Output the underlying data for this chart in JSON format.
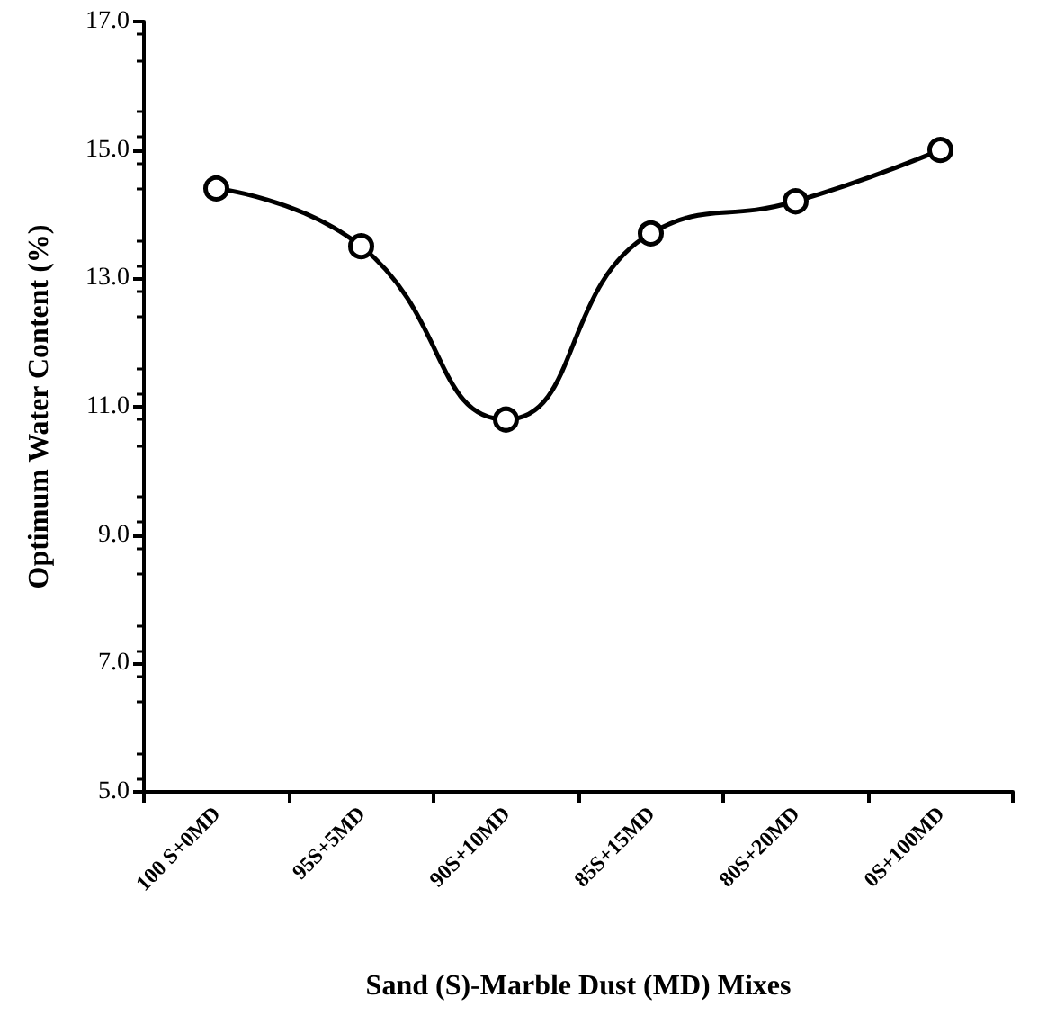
{
  "chart_data": {
    "type": "line",
    "xlabel": "Sand (S)-Marble Dust (MD) Mixes",
    "ylabel": "Optimum Water Content (%)",
    "categories": [
      "100 S+0MD",
      "95S+5MD",
      "90S+10MD",
      "85S+15MD",
      "80S+20MD",
      "0S+100MD"
    ],
    "series": [
      {
        "color": "#000000",
        "values": [
          14.4,
          13.5,
          10.8,
          13.7,
          14.2,
          15.0
        ]
      }
    ],
    "ylim": [
      5,
      17
    ],
    "yticks": [
      {
        "value": 5,
        "label": "5.0"
      },
      {
        "value": 7,
        "label": "7.0"
      },
      {
        "value": 9,
        "label": "9.0"
      },
      {
        "value": 11,
        "label": "11.0"
      },
      {
        "value": 13,
        "label": "13.0"
      },
      {
        "value": 15,
        "label": "15.0"
      },
      {
        "value": 17,
        "label": "17.0"
      }
    ],
    "grid": false,
    "marker": "circle",
    "line_style": "solid"
  }
}
